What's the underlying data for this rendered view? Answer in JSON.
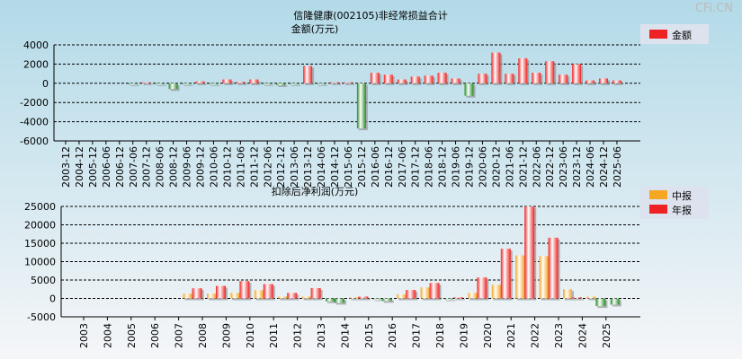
{
  "watermark": "CFi.CN",
  "chart_data": [
    {
      "type": "bar",
      "title": "信隆健康(002105)非经常损益合计",
      "ylabel": "金额(万元)",
      "ylim": [
        -6000,
        4000
      ],
      "yticks": [
        4000,
        2000,
        0,
        -2000,
        -4000,
        -6000
      ],
      "legend": {
        "placement": "top-right",
        "entries": [
          "金额"
        ]
      },
      "categories": [
        "2003-12",
        "2004-12",
        "2005-12",
        "2006-06",
        "2006-12",
        "2007-06",
        "2007-12",
        "2008-06",
        "2008-12",
        "2009-06",
        "2009-12",
        "2010-06",
        "2010-12",
        "2011-06",
        "2011-12",
        "2012-06",
        "2012-12",
        "2013-06",
        "2013-12",
        "2014-06",
        "2014-12",
        "2015-06",
        "2015-12",
        "2016-06",
        "2016-12",
        "2017-06",
        "2017-12",
        "2018-06",
        "2018-12",
        "2019-06",
        "2019-12",
        "2020-06",
        "2020-12",
        "2021-06",
        "2021-12",
        "2022-06",
        "2022-12",
        "2023-06",
        "2023-12",
        "2024-06",
        "2024-12",
        "2025-06"
      ],
      "series": [
        {
          "name": "金额",
          "values": [
            0,
            0,
            0,
            0,
            0,
            -50,
            100,
            -50,
            -600,
            -30,
            200,
            -50,
            400,
            150,
            400,
            -80,
            -200,
            -80,
            1800,
            -50,
            100,
            100,
            -4700,
            1100,
            900,
            400,
            700,
            800,
            1100,
            500,
            -1300,
            1000,
            3200,
            1000,
            2600,
            1100,
            2300,
            900,
            2000,
            300,
            500,
            300
          ]
        }
      ]
    },
    {
      "type": "bar",
      "title": "扣除后净利润(万元)",
      "ylim": [
        -5000,
        25000
      ],
      "yticks": [
        25000,
        20000,
        15000,
        10000,
        5000,
        0,
        -5000
      ],
      "legend": {
        "placement": "top-right",
        "entries": [
          "中报",
          "年报"
        ]
      },
      "categories": [
        "2003",
        "2004",
        "2005",
        "2006",
        "2007",
        "2008",
        "2009",
        "2010",
        "2011",
        "2012",
        "2013",
        "2014",
        "2015",
        "2016",
        "2017",
        "2018",
        "2019",
        "2020",
        "2021",
        "2022",
        "2023",
        "2024",
        "2025"
      ],
      "series": [
        {
          "name": "中报",
          "values": [
            null,
            null,
            null,
            null,
            1300,
            1300,
            1500,
            2250,
            500,
            500,
            -800,
            300,
            -100,
            1100,
            3000,
            -200,
            1500,
            3700,
            11700,
            11500,
            2500,
            500,
            -1700
          ]
        },
        {
          "name": "年报",
          "values": [
            null,
            null,
            null,
            null,
            2750,
            3400,
            4700,
            3900,
            1500,
            2800,
            -1200,
            500,
            -700,
            2300,
            4200,
            300,
            5700,
            13500,
            25000,
            16500,
            300,
            -2100,
            null
          ]
        }
      ]
    }
  ],
  "colors": {
    "pos": "#ee2222",
    "neg": "#228822",
    "mid": "#f5a623"
  }
}
